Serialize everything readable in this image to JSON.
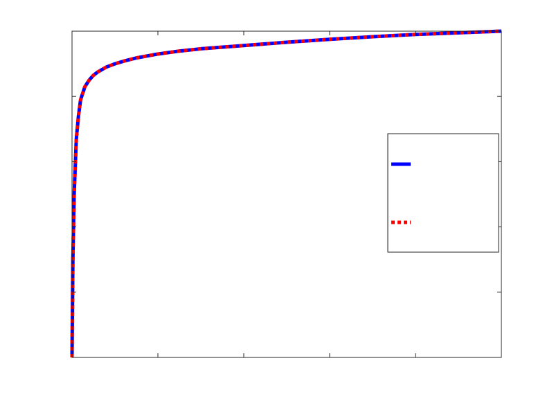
{
  "chart_data": {
    "type": "line",
    "title": "",
    "xlabel": "",
    "ylabel": "",
    "xlim": [
      0,
      1
    ],
    "ylim": [
      0,
      1
    ],
    "x_ticks": [
      0,
      0.2,
      0.4,
      0.6,
      0.8,
      1
    ],
    "y_ticks": [
      0,
      0.2,
      0.4,
      0.6,
      0.8,
      1
    ],
    "x_tick_labels": [],
    "y_tick_labels": [],
    "grid": false,
    "legend": {
      "placement": "right",
      "entries": [
        {
          "label": "",
          "color": "#0000ff",
          "style": "solid"
        },
        {
          "label": "",
          "color": "#ff0000",
          "style": "dotted"
        }
      ]
    },
    "x": [
      0,
      0.002,
      0.005,
      0.01,
      0.015,
      0.02,
      0.03,
      0.04,
      0.05,
      0.06,
      0.08,
      0.1,
      0.12,
      0.15,
      0.2,
      0.25,
      0.3,
      0.4,
      0.5,
      0.6,
      0.7,
      0.8,
      0.9,
      1.0
    ],
    "series": [
      {
        "color": "#0000ff",
        "style": "solid",
        "values": [
          0,
          0.3,
          0.5,
          0.67,
          0.74,
          0.79,
          0.83,
          0.85,
          0.865,
          0.875,
          0.89,
          0.9,
          0.908,
          0.918,
          0.93,
          0.939,
          0.946,
          0.956,
          0.966,
          0.975,
          0.983,
          0.99,
          0.995,
          1.0
        ]
      },
      {
        "color": "#ff0000",
        "style": "dotted",
        "values": [
          0,
          0.3,
          0.5,
          0.67,
          0.74,
          0.79,
          0.83,
          0.85,
          0.865,
          0.875,
          0.89,
          0.9,
          0.908,
          0.918,
          0.93,
          0.939,
          0.946,
          0.956,
          0.966,
          0.975,
          0.983,
          0.99,
          0.995,
          1.0
        ]
      }
    ]
  }
}
